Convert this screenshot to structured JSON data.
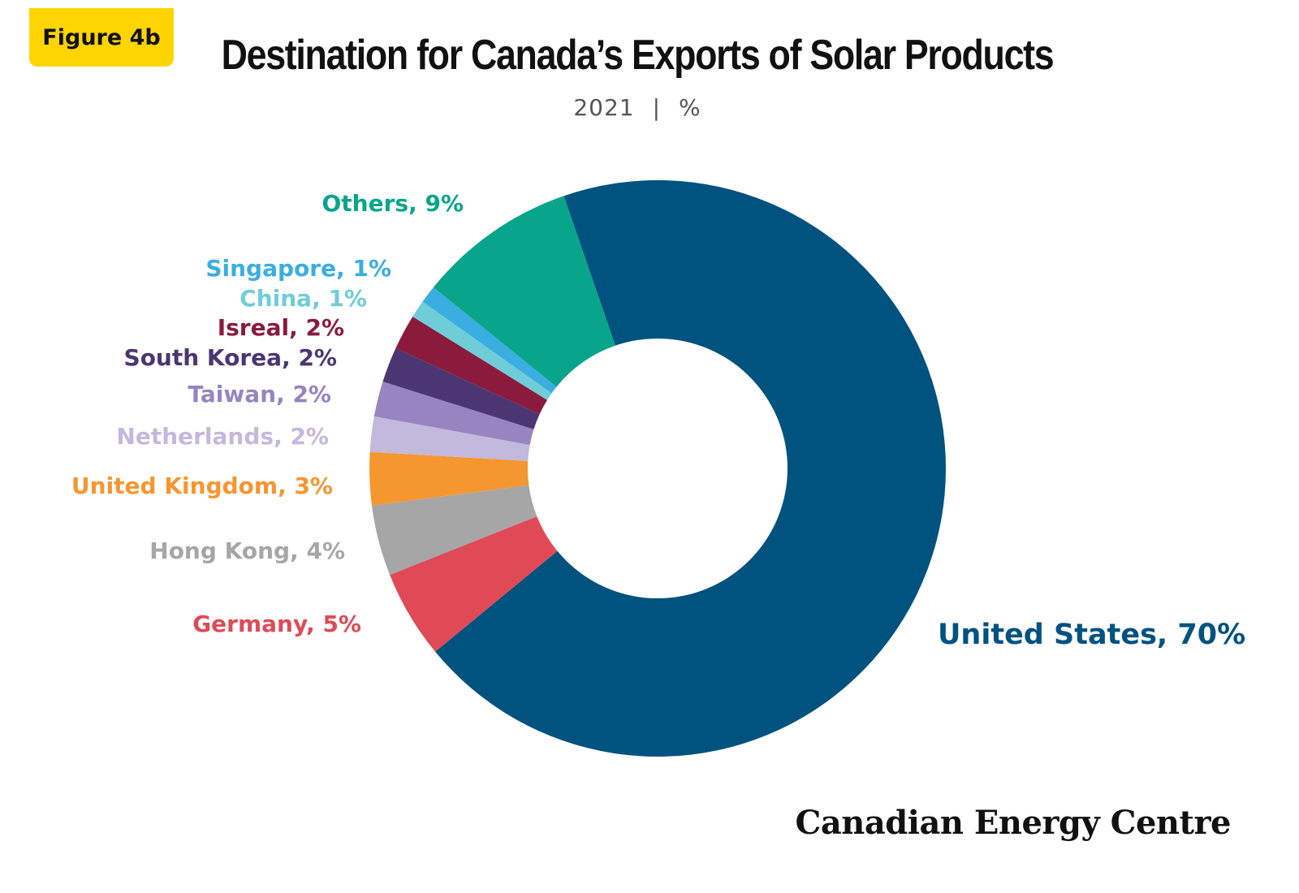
{
  "badge": "Figure 4b",
  "header": {
    "title": "Destination for Canada’s Exports of Solar Products",
    "year": "2021",
    "unit": "%"
  },
  "brand": "Canadian Energy Centre",
  "chart_data": {
    "type": "pie",
    "donut": true,
    "title": "Destination for Canada’s Exports of Solar Products",
    "subtitle": "2021 | %",
    "slices": [
      {
        "name": "United States",
        "value": 70,
        "label": "United States, 70%",
        "color": "#00527f"
      },
      {
        "name": "Germany",
        "value": 5,
        "label": "Germany, 5%",
        "color": "#e04a57"
      },
      {
        "name": "Hong Kong",
        "value": 4,
        "label": "Hong Kong, 4%",
        "color": "#a6a6a6"
      },
      {
        "name": "United Kingdom",
        "value": 3,
        "label": "United Kingdom, 3%",
        "color": "#f6962f"
      },
      {
        "name": "Netherlands",
        "value": 2,
        "label": "Netherlands, 2%",
        "color": "#c2b9dc"
      },
      {
        "name": "Taiwan",
        "value": 2,
        "label": "Taiwan, 2%",
        "color": "#9784c0"
      },
      {
        "name": "South Korea",
        "value": 2,
        "label": "South Korea, 2%",
        "color": "#4b3673"
      },
      {
        "name": "Isreal",
        "value": 2,
        "label": "Isreal, 2%",
        "color": "#8a1b3c"
      },
      {
        "name": "China",
        "value": 1,
        "label": "China, 1%",
        "color": "#6fcdd8"
      },
      {
        "name": "Singapore",
        "value": 1,
        "label": "Singapore, 1%",
        "color": "#3aaee0"
      },
      {
        "name": "Others",
        "value": 9,
        "label": "Others, 9%",
        "color": "#09a58b"
      }
    ]
  }
}
